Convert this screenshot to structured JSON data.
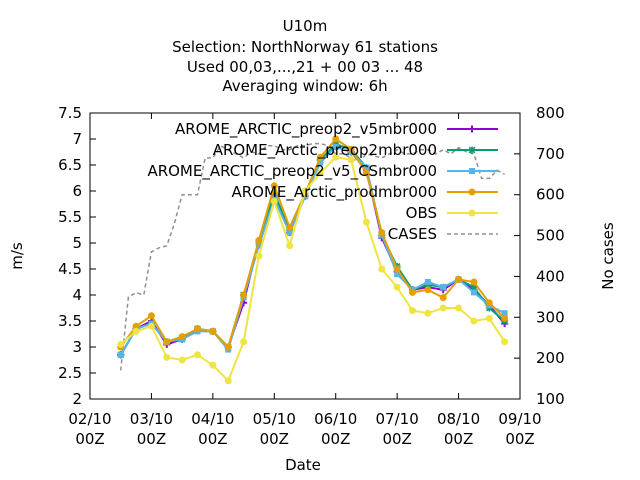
{
  "title_lines": [
    "U10m",
    "Selection: NorthNorway     61 stations",
    "Used  00,03,...,21  + 00 03 ... 48",
    "Averaging window:  6h"
  ],
  "chart_data": {
    "type": "line",
    "xlabel": "Date",
    "ylabel": "m/s",
    "y2label": "No cases",
    "xlim": [
      0,
      7
    ],
    "ylim": [
      2,
      7.5
    ],
    "y2lim": [
      100,
      800
    ],
    "x_ticks": [
      {
        "x": 0,
        "l1": "02/10",
        "l2": "00Z"
      },
      {
        "x": 1,
        "l1": "03/10",
        "l2": "00Z"
      },
      {
        "x": 2,
        "l1": "04/10",
        "l2": "00Z"
      },
      {
        "x": 3,
        "l1": "05/10",
        "l2": "00Z"
      },
      {
        "x": 4,
        "l1": "06/10",
        "l2": "00Z"
      },
      {
        "x": 5,
        "l1": "07/10",
        "l2": "00Z"
      },
      {
        "x": 6,
        "l1": "08/10",
        "l2": "00Z"
      },
      {
        "x": 7,
        "l1": "09/10",
        "l2": "00Z"
      }
    ],
    "y_ticks": [
      "2",
      "2.5",
      "3",
      "3.5",
      "4",
      "4.5",
      "5",
      "5.5",
      "6",
      "6.5",
      "7",
      "7.5"
    ],
    "y2_ticks": [
      "100",
      "200",
      "300",
      "400",
      "500",
      "600",
      "700",
      "800"
    ],
    "x": [
      0.5,
      0.75,
      1.0,
      1.25,
      1.5,
      1.75,
      2.0,
      2.25,
      2.5,
      2.75,
      3.0,
      3.25,
      3.5,
      3.75,
      4.0,
      4.25,
      4.5,
      4.75,
      5.0,
      5.25,
      5.5,
      5.75,
      6.0,
      6.25,
      6.5,
      6.75
    ],
    "series": [
      {
        "name": "AROME_ARCTIC_preop2_v5mbr000",
        "color": "#9400d3",
        "marker": "plus",
        "values": [
          2.85,
          3.35,
          3.5,
          3.05,
          3.15,
          3.35,
          3.3,
          3.0,
          3.85,
          5.05,
          5.9,
          5.2,
          5.9,
          6.6,
          6.85,
          6.75,
          6.4,
          5.1,
          4.45,
          4.1,
          4.15,
          4.1,
          4.3,
          4.1,
          3.8,
          3.45
        ]
      },
      {
        "name": "AROME_Arctic_preop2mbr000",
        "color": "#009e73",
        "marker": "star",
        "values": [
          2.85,
          3.35,
          3.45,
          3.1,
          3.15,
          3.35,
          3.3,
          3.0,
          4.0,
          5.0,
          5.95,
          5.25,
          5.9,
          6.6,
          6.9,
          6.8,
          6.45,
          5.15,
          4.55,
          4.1,
          4.2,
          4.15,
          4.3,
          4.15,
          3.75,
          3.5
        ]
      },
      {
        "name": "AROME_ARCTIC_preop2_v5_CSmbr000",
        "color": "#56b4e9",
        "marker": "box",
        "values": [
          2.85,
          3.35,
          3.45,
          3.1,
          3.15,
          3.3,
          3.3,
          2.95,
          3.95,
          4.95,
          5.85,
          5.2,
          5.9,
          6.55,
          6.85,
          6.75,
          6.45,
          5.15,
          4.4,
          4.1,
          4.25,
          4.15,
          4.3,
          4.05,
          3.8,
          3.65
        ]
      },
      {
        "name": "AROME_Arctic_prodmbr000",
        "color": "#e69f00",
        "marker": "dot",
        "values": [
          3.0,
          3.4,
          3.6,
          3.1,
          3.2,
          3.35,
          3.3,
          3.0,
          4.0,
          5.05,
          6.1,
          5.3,
          5.95,
          6.65,
          7.0,
          6.8,
          6.35,
          5.2,
          4.5,
          4.05,
          4.1,
          3.95,
          4.3,
          4.25,
          3.85,
          3.55
        ]
      },
      {
        "name": "OBS",
        "color": "#f0e442",
        "marker": "dot",
        "values": [
          3.05,
          3.3,
          3.4,
          2.8,
          2.75,
          2.85,
          2.65,
          2.35,
          3.1,
          4.75,
          5.8,
          4.95,
          6.0,
          6.35,
          6.65,
          6.6,
          5.4,
          4.5,
          4.15,
          3.7,
          3.65,
          3.75,
          3.75,
          3.5,
          3.55,
          3.1
        ]
      }
    ],
    "cases": {
      "name": "CASES",
      "color": "#909090",
      "x": [
        0.5,
        0.625,
        0.75,
        0.875,
        1.0,
        1.125,
        1.25,
        1.375,
        1.5,
        1.625,
        1.75,
        1.875,
        2.0,
        2.125,
        2.25,
        2.375,
        2.5,
        2.625,
        2.75,
        2.875,
        3.0,
        3.125,
        3.25,
        3.375,
        3.5,
        3.625,
        3.75,
        3.875,
        4.0,
        4.125,
        4.25,
        4.375,
        4.5,
        4.625,
        4.75,
        4.875,
        5.0,
        5.125,
        5.25,
        5.375,
        5.5,
        5.625,
        5.75,
        5.875,
        6.0,
        6.125,
        6.25,
        6.375,
        6.5,
        6.625,
        6.75
      ],
      "values": [
        170,
        350,
        360,
        355,
        460,
        470,
        475,
        530,
        600,
        600,
        600,
        690,
        690,
        720,
        710,
        700,
        690,
        705,
        700,
        720,
        720,
        710,
        710,
        720,
        720,
        725,
        725,
        720,
        700,
        700,
        690,
        680,
        700,
        695,
        690,
        700,
        710,
        700,
        700,
        710,
        710,
        700,
        710,
        700,
        715,
        705,
        700,
        640,
        640,
        660,
        650
      ]
    }
  }
}
